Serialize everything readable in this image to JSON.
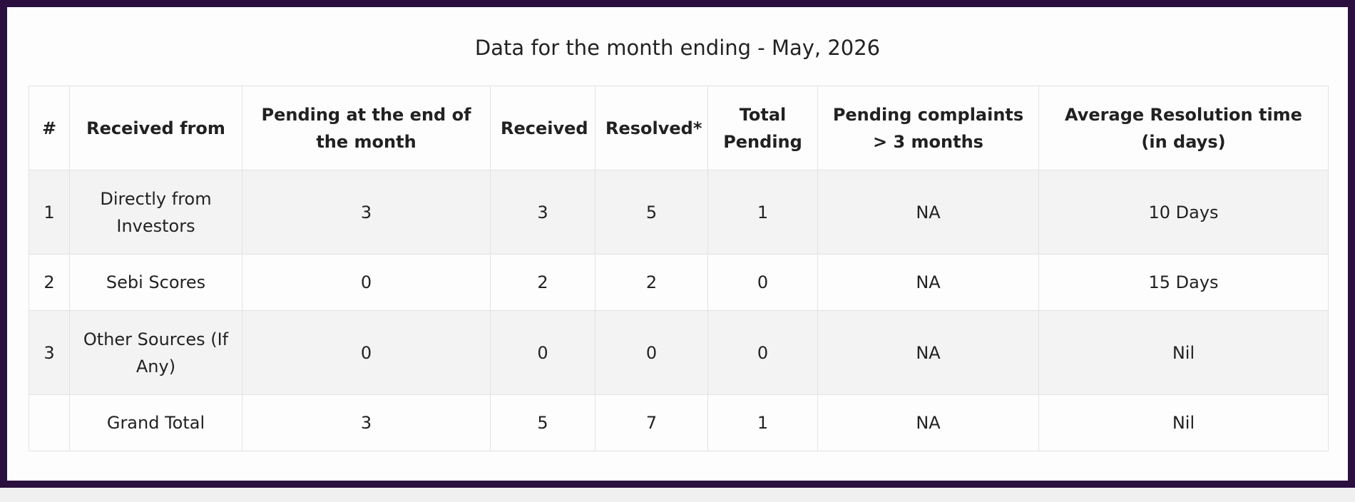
{
  "title": "Data for the month ending - May, 2026",
  "table": {
    "headers": [
      "#",
      "Received from",
      "Pending at the end of the month",
      "Received",
      "Resolved*",
      "Total Pending",
      "Pending complaints > 3 months",
      "Average Resolution time (in days)"
    ],
    "rows": [
      [
        "1",
        "Directly from Investors",
        "3",
        "3",
        "5",
        "1",
        "NA",
        "10 Days"
      ],
      [
        "2",
        "Sebi Scores",
        "0",
        "2",
        "2",
        "0",
        "NA",
        "15 Days"
      ],
      [
        "3",
        "Other Sources (If Any)",
        "0",
        "0",
        "0",
        "0",
        "NA",
        "Nil"
      ],
      [
        "",
        "Grand Total",
        "3",
        "5",
        "7",
        "1",
        "NA",
        "Nil"
      ]
    ]
  },
  "colors": {
    "frame": "#2b0f3f",
    "panel": "#fdfdfd",
    "stripe": "#f3f3f3",
    "border": "#e2e2e2"
  }
}
